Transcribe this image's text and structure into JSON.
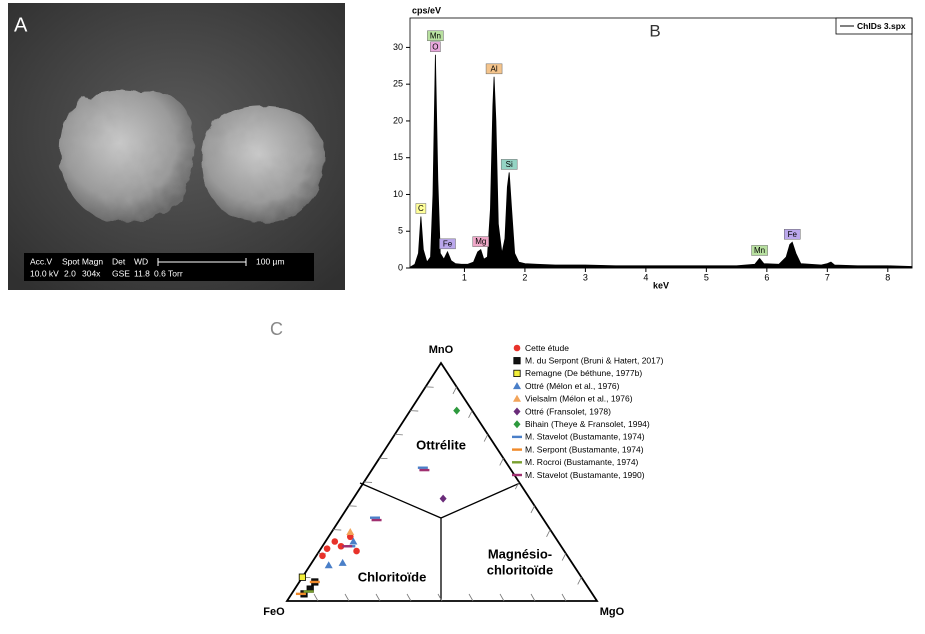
{
  "panel_a": {
    "label": "A",
    "info_row1": [
      "Acc.V",
      "Spot Magn",
      "Det",
      "WD"
    ],
    "info_row2": [
      "10.0 kV",
      "2.0",
      "304x",
      "GSE",
      "11.8",
      "0.6 Torr"
    ],
    "scale_label": "100 µm"
  },
  "chart_data": [
    {
      "type": "area",
      "label": "B",
      "y_label": "cps/eV",
      "x_label": "keV",
      "legend": "ChIDs 3.spx",
      "color": "#000000",
      "xlim": [
        0.1,
        8.4
      ],
      "ylim": [
        0,
        34
      ],
      "xticks": [
        1,
        2,
        3,
        4,
        5,
        6,
        7,
        8
      ],
      "yticks": [
        0,
        5,
        10,
        15,
        20,
        25,
        30
      ],
      "x": [
        0.1,
        0.18,
        0.24,
        0.28,
        0.32,
        0.38,
        0.44,
        0.48,
        0.52,
        0.56,
        0.6,
        0.66,
        0.72,
        0.78,
        0.85,
        0.95,
        1.05,
        1.15,
        1.22,
        1.27,
        1.32,
        1.38,
        1.43,
        1.47,
        1.49,
        1.52,
        1.56,
        1.62,
        1.67,
        1.71,
        1.74,
        1.78,
        1.83,
        1.9,
        2.0,
        2.2,
        2.5,
        3.0,
        3.5,
        4.0,
        4.5,
        5.0,
        5.5,
        5.8,
        5.88,
        5.95,
        6.2,
        6.32,
        6.38,
        6.42,
        6.48,
        6.56,
        6.9,
        7.0,
        7.06,
        7.12,
        7.5,
        8.0,
        8.4
      ],
      "values": [
        0.1,
        0.5,
        2,
        7,
        2.5,
        0.8,
        1.5,
        10,
        29,
        12,
        2,
        1.2,
        2.2,
        1,
        0.6,
        0.5,
        0.5,
        0.8,
        2.2,
        2.5,
        1.2,
        1.5,
        8,
        22,
        26,
        20,
        6,
        2,
        4,
        11,
        13,
        8,
        2,
        0.8,
        0.6,
        0.5,
        0.4,
        0.4,
        0.3,
        0.3,
        0.3,
        0.3,
        0.3,
        0.5,
        1.3,
        0.6,
        0.5,
        1.5,
        3.2,
        3.5,
        2,
        0.6,
        0.4,
        0.6,
        0.8,
        0.4,
        0.3,
        0.3,
        0.2
      ],
      "annotations": [
        {
          "text": "C",
          "x": 0.28,
          "color": "#ffff99"
        },
        {
          "text": "O",
          "x": 0.52,
          "color": "#e8a8dc"
        },
        {
          "text": "Mn",
          "x": 0.52,
          "color": "#b8e0a0"
        },
        {
          "text": "Fe",
          "x": 0.72,
          "color": "#bba8ec"
        },
        {
          "text": "Mg",
          "x": 1.27,
          "color": "#f0a8c8"
        },
        {
          "text": "Al",
          "x": 1.49,
          "color": "#f4c48c"
        },
        {
          "text": "Si",
          "x": 1.74,
          "color": "#94d4c4"
        },
        {
          "text": "Mn",
          "x": 5.88,
          "color": "#b8e0a0"
        },
        {
          "text": "Fe",
          "x": 6.42,
          "color": "#bba8ec"
        }
      ]
    },
    {
      "type": "ternary",
      "label": "C",
      "vertices": [
        "FeO",
        "MgO",
        "MnO"
      ],
      "field_labels": [
        "Ottrélite",
        "Chloritoïde",
        "Magnésio-",
        "chloritoïde"
      ],
      "series": [
        {
          "name": "Cette étude",
          "marker": "circle",
          "color": "#e8322a",
          "values": [
            [
              0.72,
              0.03,
              0.25
            ],
            [
              0.76,
              0.02,
              0.22
            ],
            [
              0.79,
              0.02,
              0.19
            ],
            [
              0.71,
              0.06,
              0.23
            ],
            [
              0.66,
              0.07,
              0.27
            ],
            [
              0.67,
              0.12,
              0.21
            ]
          ]
        },
        {
          "name": "M. du Serpont (Bruni & Hatert, 2017)",
          "marker": "square",
          "color": "#111111",
          "values": [
            [
              0.93,
              0.04,
              0.03
            ],
            [
              0.9,
              0.05,
              0.05
            ],
            [
              0.87,
              0.05,
              0.08
            ]
          ]
        },
        {
          "name": "Remagne (De béthune, 1977b)",
          "marker": "square",
          "color": "#f2ef3a",
          "values": [
            [
              0.9,
              0.0,
              0.1
            ]
          ]
        },
        {
          "name": "Ottré (Mélon et al., 1976)",
          "marker": "triangle",
          "color": "#4a7fc8",
          "values": [
            [
              0.79,
              0.06,
              0.15
            ],
            [
              0.74,
              0.1,
              0.16
            ],
            [
              0.66,
              0.09,
              0.25
            ]
          ]
        },
        {
          "name": "Vielsalm (Mélon et al., 1976)",
          "marker": "triangle",
          "color": "#f2a45a",
          "values": [
            [
              0.65,
              0.06,
              0.29
            ]
          ]
        },
        {
          "name": "Ottré (Fransolet, 1978)",
          "marker": "diamond",
          "color": "#6a2c7a",
          "values": [
            [
              0.28,
              0.29,
              0.43
            ]
          ]
        },
        {
          "name": "Bihain (Theye & Fransolet, 1994)",
          "marker": "diamond",
          "color": "#2e9a3e",
          "values": [
            [
              0.05,
              0.15,
              0.8
            ]
          ]
        },
        {
          "name": "M. Stavelot (Bustamante, 1974)",
          "marker": "dash",
          "color": "#4a7fc8",
          "values": [
            [
              0.28,
              0.16,
              0.56
            ],
            [
              0.54,
              0.11,
              0.35
            ],
            [
              0.68,
              0.09,
              0.23
            ]
          ]
        },
        {
          "name": "M. Serpont (Bustamante, 1974)",
          "marker": "dash",
          "color": "#f08a2a",
          "values": [
            [
              0.94,
              0.03,
              0.03
            ],
            [
              0.87,
              0.05,
              0.08
            ]
          ]
        },
        {
          "name": "M. Rocroi (Bustamante, 1974)",
          "marker": "dash",
          "color": "#7aa030",
          "values": [
            [
              0.91,
              0.05,
              0.04
            ]
          ]
        },
        {
          "name": "M. Stavelot (Bustamante, 1990)",
          "marker": "dash",
          "color": "#a03070",
          "values": [
            [
              0.28,
              0.17,
              0.55
            ],
            [
              0.54,
              0.12,
              0.34
            ],
            [
              0.69,
              0.08,
              0.23
            ]
          ]
        }
      ]
    }
  ]
}
